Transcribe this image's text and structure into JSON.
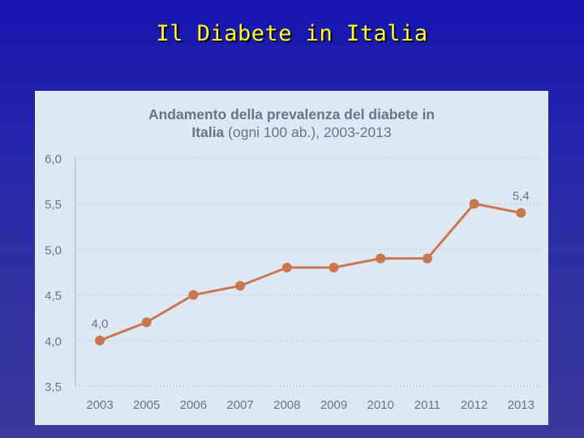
{
  "slide": {
    "title": "Il Diabete in Italia"
  },
  "chart_data": {
    "type": "line",
    "title_bold_line1": "Andamento della prevalenza del diabete in",
    "title_bold_line2": "Italia",
    "title_normal_line2": " (ogni 100 ab.), 2003-2013",
    "categories": [
      "2003",
      "2005",
      "2006",
      "2007",
      "2008",
      "2009",
      "2010",
      "2011",
      "2012",
      "2013"
    ],
    "values": [
      4.0,
      4.2,
      4.5,
      4.6,
      4.8,
      4.8,
      4.9,
      4.9,
      5.5,
      5.4
    ],
    "point_labels": [
      {
        "index": 0,
        "text": "4,0"
      },
      {
        "index": 9,
        "text": "5,4"
      }
    ],
    "y_ticks": [
      "3,5",
      "4,0",
      "4,5",
      "5,0",
      "5,5",
      "6,0"
    ],
    "ylim": [
      3.5,
      6.0
    ],
    "grid": true,
    "line_color": "#c87850",
    "text_color": "#667688"
  }
}
